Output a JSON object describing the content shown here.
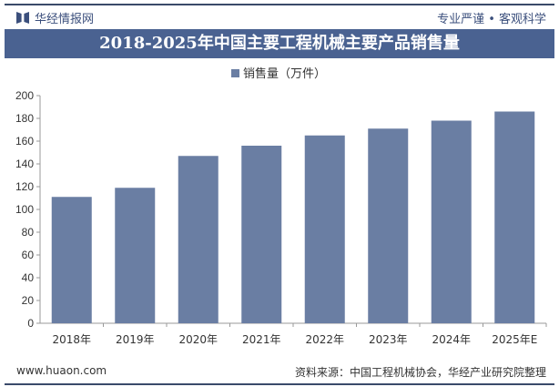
{
  "header": {
    "brand": "华经情报网",
    "slogan": "专业严谨 • 客观科学",
    "title": "2018-2025年中国主要工程机械主要产品销售量"
  },
  "footer": {
    "website": "www.huaon.com",
    "source": "资料来源：中国工程机械协会，华经产业研究院整理"
  },
  "colors": {
    "bar": "#6a7ea3",
    "title_bg": "#4a6291"
  },
  "chart_data": {
    "type": "bar",
    "title": "2018-2025年中国主要工程机械主要产品销售量",
    "categories": [
      "2018年",
      "2019年",
      "2020年",
      "2021年",
      "2022年",
      "2023年",
      "2024年",
      "2025年E"
    ],
    "series": [
      {
        "name": "销售量（万件）",
        "values": [
          111,
          119,
          147,
          156,
          165,
          171,
          178,
          186
        ]
      }
    ],
    "ylim": [
      0,
      200
    ],
    "yticks": [
      0,
      20,
      40,
      60,
      80,
      100,
      120,
      140,
      160,
      180,
      200
    ],
    "legend": "top-center",
    "grid": false
  }
}
